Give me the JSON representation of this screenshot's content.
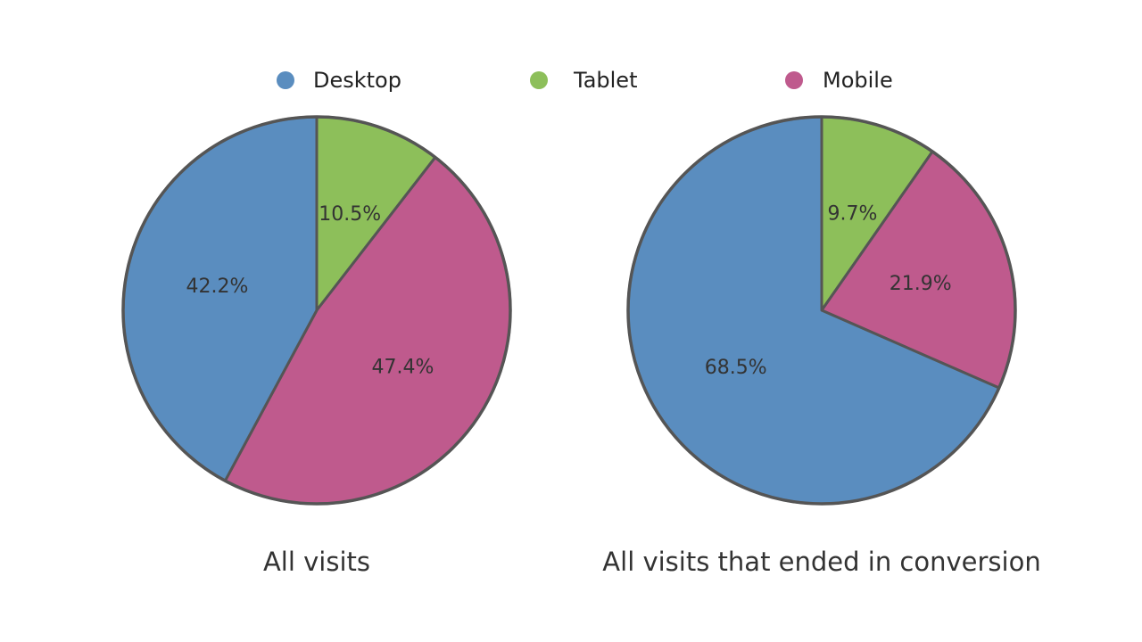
{
  "legend": {
    "placement": "top",
    "items": [
      {
        "label": "Desktop",
        "color": "#5A8DBF"
      },
      {
        "label": "Tablet",
        "color": "#8DBF5A"
      },
      {
        "label": "Mobile",
        "color": "#BF5A8D"
      }
    ]
  },
  "chart_data": [
    {
      "type": "pie",
      "title": "All visits",
      "start": "12 o'clock",
      "direction": "clockwise",
      "border_color": "#555555",
      "slices": [
        {
          "label": "Tablet",
          "value": 10.5,
          "text": "10.5%",
          "color": "#8DBF5A"
        },
        {
          "label": "Mobile",
          "value": 47.4,
          "text": "47.4%",
          "color": "#BF5A8D"
        },
        {
          "label": "Desktop",
          "value": 42.2,
          "text": "42.2%",
          "color": "#5A8DBF"
        }
      ]
    },
    {
      "type": "pie",
      "title": "All visits that ended in conversion",
      "start": "12 o'clock",
      "direction": "clockwise",
      "border_color": "#555555",
      "slices": [
        {
          "label": "Tablet",
          "value": 9.7,
          "text": "9.7%",
          "color": "#8DBF5A"
        },
        {
          "label": "Mobile",
          "value": 21.9,
          "text": "21.9%",
          "color": "#BF5A8D"
        },
        {
          "label": "Desktop",
          "value": 68.5,
          "text": "68.5%",
          "color": "#5A8DBF"
        }
      ]
    }
  ]
}
